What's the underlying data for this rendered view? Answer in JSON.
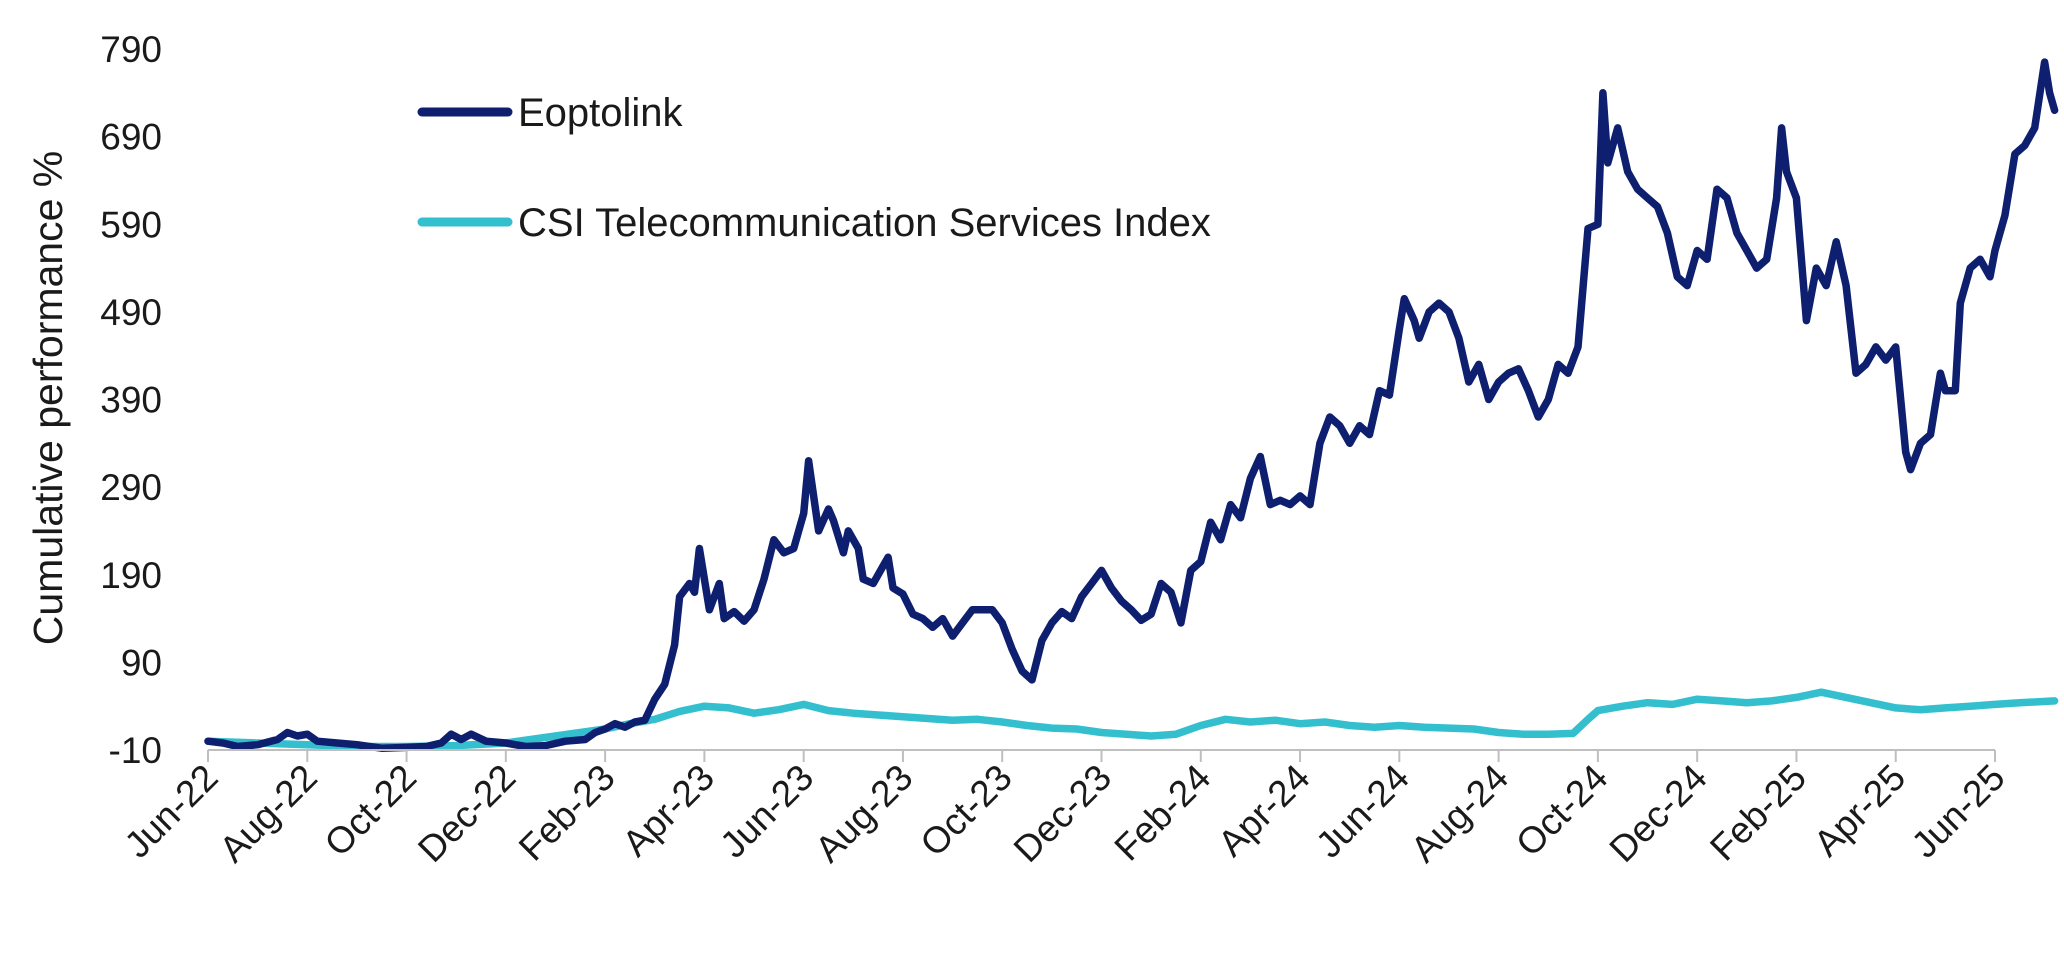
{
  "chart_data": {
    "type": "line",
    "title": "",
    "xlabel": "",
    "ylabel": "Cumulative performance %",
    "ylim": [
      -10,
      790
    ],
    "yticks": [
      -10,
      90,
      190,
      290,
      390,
      490,
      590,
      690,
      790
    ],
    "grid": false,
    "legend_position": "top-left",
    "x_range": [
      0,
      36
    ],
    "x_tick_labels": [
      {
        "label": "Jun-22",
        "x": 0
      },
      {
        "label": "Aug-22",
        "x": 2
      },
      {
        "label": "Oct-22",
        "x": 4
      },
      {
        "label": "Dec-22",
        "x": 6
      },
      {
        "label": "Feb-23",
        "x": 8
      },
      {
        "label": "Apr-23",
        "x": 10
      },
      {
        "label": "Jun-23",
        "x": 12
      },
      {
        "label": "Aug-23",
        "x": 14
      },
      {
        "label": "Oct-23",
        "x": 16
      },
      {
        "label": "Dec-23",
        "x": 18
      },
      {
        "label": "Feb-24",
        "x": 20
      },
      {
        "label": "Apr-24",
        "x": 22
      },
      {
        "label": "Jun-24",
        "x": 24
      },
      {
        "label": "Aug-24",
        "x": 26
      },
      {
        "label": "Oct-24",
        "x": 28
      },
      {
        "label": "Dec-24",
        "x": 30
      },
      {
        "label": "Feb-25",
        "x": 32
      },
      {
        "label": "Apr-25",
        "x": 34
      },
      {
        "label": "Jun-25",
        "x": 36
      }
    ],
    "series": [
      {
        "name": "Eoptolink",
        "color": "#0d1f6e",
        "points": [
          [
            0,
            0
          ],
          [
            0.3,
            -2
          ],
          [
            0.6,
            -6
          ],
          [
            1.0,
            -4
          ],
          [
            1.4,
            2
          ],
          [
            1.6,
            10
          ],
          [
            1.8,
            6
          ],
          [
            2.0,
            8
          ],
          [
            2.2,
            0
          ],
          [
            2.6,
            -2
          ],
          [
            3.0,
            -4
          ],
          [
            3.5,
            -8
          ],
          [
            4.0,
            -7
          ],
          [
            4.4,
            -6
          ],
          [
            4.7,
            -2
          ],
          [
            4.9,
            8
          ],
          [
            5.1,
            2
          ],
          [
            5.3,
            8
          ],
          [
            5.6,
            0
          ],
          [
            6.0,
            -2
          ],
          [
            6.4,
            -6
          ],
          [
            6.8,
            -5
          ],
          [
            7.2,
            0
          ],
          [
            7.6,
            2
          ],
          [
            7.8,
            10
          ],
          [
            8.0,
            14
          ],
          [
            8.2,
            20
          ],
          [
            8.4,
            16
          ],
          [
            8.6,
            22
          ],
          [
            8.8,
            24
          ],
          [
            9.0,
            48
          ],
          [
            9.2,
            65
          ],
          [
            9.4,
            110
          ],
          [
            9.5,
            165
          ],
          [
            9.7,
            180
          ],
          [
            9.8,
            170
          ],
          [
            9.9,
            220
          ],
          [
            10.1,
            150
          ],
          [
            10.3,
            180
          ],
          [
            10.4,
            140
          ],
          [
            10.6,
            148
          ],
          [
            10.8,
            137
          ],
          [
            11.0,
            150
          ],
          [
            11.2,
            185
          ],
          [
            11.4,
            230
          ],
          [
            11.6,
            215
          ],
          [
            11.8,
            220
          ],
          [
            11.9,
            240
          ],
          [
            12.0,
            260
          ],
          [
            12.1,
            320
          ],
          [
            12.3,
            240
          ],
          [
            12.5,
            265
          ],
          [
            12.6,
            252
          ],
          [
            12.8,
            215
          ],
          [
            12.9,
            240
          ],
          [
            13.1,
            220
          ],
          [
            13.2,
            185
          ],
          [
            13.4,
            180
          ],
          [
            13.6,
            200
          ],
          [
            13.7,
            210
          ],
          [
            13.8,
            175
          ],
          [
            14.0,
            168
          ],
          [
            14.2,
            145
          ],
          [
            14.4,
            140
          ],
          [
            14.6,
            130
          ],
          [
            14.8,
            140
          ],
          [
            15.0,
            120
          ],
          [
            15.2,
            135
          ],
          [
            15.4,
            150
          ],
          [
            15.8,
            150
          ],
          [
            16.0,
            135
          ],
          [
            16.2,
            105
          ],
          [
            16.4,
            80
          ],
          [
            16.6,
            70
          ],
          [
            16.8,
            115
          ],
          [
            17.0,
            135
          ],
          [
            17.2,
            148
          ],
          [
            17.4,
            140
          ],
          [
            17.6,
            165
          ],
          [
            17.8,
            180
          ],
          [
            18.0,
            195
          ],
          [
            18.2,
            175
          ],
          [
            18.4,
            160
          ],
          [
            18.6,
            150
          ],
          [
            18.8,
            138
          ],
          [
            19.0,
            145
          ],
          [
            19.2,
            180
          ],
          [
            19.4,
            170
          ],
          [
            19.6,
            135
          ],
          [
            19.8,
            195
          ],
          [
            20.0,
            205
          ],
          [
            20.2,
            250
          ],
          [
            20.4,
            230
          ],
          [
            20.6,
            270
          ],
          [
            20.8,
            255
          ],
          [
            21.0,
            300
          ],
          [
            21.2,
            325
          ],
          [
            21.4,
            270
          ],
          [
            21.6,
            275
          ],
          [
            21.8,
            270
          ],
          [
            22.0,
            280
          ],
          [
            22.2,
            270
          ],
          [
            22.4,
            340
          ],
          [
            22.6,
            370
          ],
          [
            22.8,
            360
          ],
          [
            23.0,
            340
          ],
          [
            23.2,
            360
          ],
          [
            23.4,
            350
          ],
          [
            23.6,
            400
          ],
          [
            23.8,
            395
          ],
          [
            24.0,
            470
          ],
          [
            24.1,
            505
          ],
          [
            24.3,
            480
          ],
          [
            24.4,
            460
          ],
          [
            24.6,
            490
          ],
          [
            24.8,
            500
          ],
          [
            25.0,
            490
          ],
          [
            25.2,
            460
          ],
          [
            25.4,
            410
          ],
          [
            25.6,
            430
          ],
          [
            25.8,
            390
          ],
          [
            26.0,
            410
          ],
          [
            26.2,
            420
          ],
          [
            26.4,
            425
          ],
          [
            26.6,
            400
          ],
          [
            26.8,
            370
          ],
          [
            27.0,
            390
          ],
          [
            27.2,
            430
          ],
          [
            27.4,
            420
          ],
          [
            27.6,
            450
          ],
          [
            27.8,
            585
          ],
          [
            28.0,
            590
          ],
          [
            28.1,
            740
          ],
          [
            28.2,
            660
          ],
          [
            28.4,
            700
          ],
          [
            28.6,
            650
          ],
          [
            28.8,
            630
          ],
          [
            29.0,
            620
          ],
          [
            29.2,
            610
          ],
          [
            29.4,
            580
          ],
          [
            29.6,
            530
          ],
          [
            29.8,
            520
          ],
          [
            30.0,
            560
          ],
          [
            30.2,
            550
          ],
          [
            30.4,
            630
          ],
          [
            30.6,
            620
          ],
          [
            30.8,
            580
          ],
          [
            31.0,
            560
          ],
          [
            31.2,
            540
          ],
          [
            31.4,
            550
          ],
          [
            31.6,
            620
          ],
          [
            31.7,
            700
          ],
          [
            31.8,
            650
          ],
          [
            32.0,
            620
          ],
          [
            32.2,
            480
          ],
          [
            32.4,
            540
          ],
          [
            32.6,
            520
          ],
          [
            32.8,
            570
          ],
          [
            33.0,
            520
          ],
          [
            33.2,
            420
          ],
          [
            33.4,
            430
          ],
          [
            33.6,
            450
          ],
          [
            33.8,
            435
          ],
          [
            34.0,
            450
          ],
          [
            34.2,
            330
          ],
          [
            34.3,
            310
          ],
          [
            34.5,
            340
          ],
          [
            34.7,
            350
          ],
          [
            34.9,
            420
          ],
          [
            35.0,
            400
          ],
          [
            35.2,
            400
          ],
          [
            35.3,
            500
          ],
          [
            35.5,
            540
          ],
          [
            35.7,
            550
          ],
          [
            35.9,
            530
          ],
          [
            36.0,
            560
          ],
          [
            36.2,
            600
          ],
          [
            36.4,
            670
          ],
          [
            36.6,
            680
          ],
          [
            36.8,
            700
          ],
          [
            37.0,
            775
          ],
          [
            37.1,
            740
          ],
          [
            37.2,
            720
          ]
        ]
      },
      {
        "name": "CSI Telecommunication Services Index",
        "color": "#34bfcf",
        "points": [
          [
            0,
            0
          ],
          [
            1,
            -2
          ],
          [
            2,
            -4
          ],
          [
            3,
            -6
          ],
          [
            4,
            -6
          ],
          [
            5,
            -5
          ],
          [
            6,
            -2
          ],
          [
            7,
            6
          ],
          [
            8,
            14
          ],
          [
            8.5,
            20
          ],
          [
            9,
            25
          ],
          [
            9.5,
            34
          ],
          [
            10,
            40
          ],
          [
            10.5,
            38
          ],
          [
            11,
            32
          ],
          [
            11.5,
            36
          ],
          [
            12,
            42
          ],
          [
            12.5,
            35
          ],
          [
            13,
            32
          ],
          [
            13.5,
            30
          ],
          [
            14,
            28
          ],
          [
            14.5,
            26
          ],
          [
            15,
            24
          ],
          [
            15.5,
            25
          ],
          [
            16,
            22
          ],
          [
            16.5,
            18
          ],
          [
            17,
            15
          ],
          [
            17.5,
            14
          ],
          [
            18,
            10
          ],
          [
            18.5,
            8
          ],
          [
            19,
            6
          ],
          [
            19.5,
            8
          ],
          [
            20,
            18
          ],
          [
            20.5,
            25
          ],
          [
            21,
            22
          ],
          [
            21.5,
            24
          ],
          [
            22,
            20
          ],
          [
            22.5,
            22
          ],
          [
            23,
            18
          ],
          [
            23.5,
            16
          ],
          [
            24,
            18
          ],
          [
            24.5,
            16
          ],
          [
            25,
            15
          ],
          [
            25.5,
            14
          ],
          [
            26,
            10
          ],
          [
            26.5,
            8
          ],
          [
            27,
            8
          ],
          [
            27.5,
            9
          ],
          [
            27.8,
            25
          ],
          [
            28,
            35
          ],
          [
            28.5,
            40
          ],
          [
            29,
            44
          ],
          [
            29.5,
            42
          ],
          [
            30,
            48
          ],
          [
            30.5,
            46
          ],
          [
            31,
            44
          ],
          [
            31.5,
            46
          ],
          [
            32,
            50
          ],
          [
            32.5,
            56
          ],
          [
            33,
            50
          ],
          [
            33.5,
            44
          ],
          [
            34,
            38
          ],
          [
            34.5,
            36
          ],
          [
            35,
            38
          ],
          [
            35.5,
            40
          ],
          [
            36,
            42
          ],
          [
            36.5,
            44
          ],
          [
            37.2,
            46
          ]
        ]
      }
    ]
  }
}
